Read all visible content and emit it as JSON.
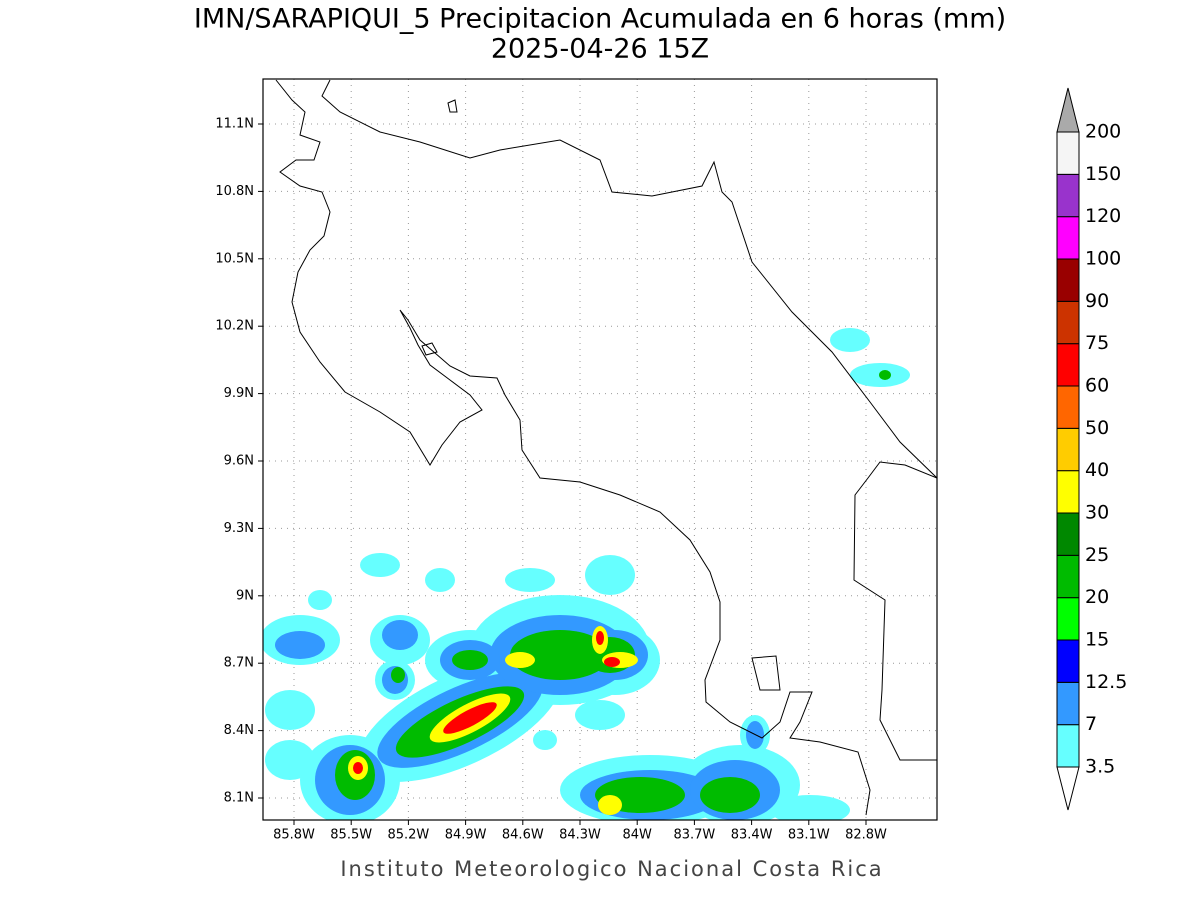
{
  "map": {
    "title": "IMN/SARAPIQUI_5 Precipitacion Acumulada en 6 horas (mm)",
    "subtitle": "2025-04-26 15Z",
    "footer": "Instituto Meteorologico Nacional Costa Rica",
    "lat_ticks": [
      {
        "value": 11.1,
        "label": "11.1N"
      },
      {
        "value": 10.8,
        "label": "10.8N"
      },
      {
        "value": 10.5,
        "label": "10.5N"
      },
      {
        "value": 10.2,
        "label": "10.2N"
      },
      {
        "value": 9.9,
        "label": "9.9N"
      },
      {
        "value": 9.6,
        "label": "9.6N"
      },
      {
        "value": 9.3,
        "label": "9.3N"
      },
      {
        "value": 9,
        "label": "9N"
      },
      {
        "value": 8.7,
        "label": "8.7N"
      },
      {
        "value": 8.4,
        "label": "8.4N"
      },
      {
        "value": 8.1,
        "label": "8.1N"
      }
    ],
    "lon_ticks": [
      {
        "value": -85.8,
        "label": "85.8W"
      },
      {
        "value": -85.5,
        "label": "85.5W"
      },
      {
        "value": -85.2,
        "label": "85.2W"
      },
      {
        "value": -84.9,
        "label": "84.9W"
      },
      {
        "value": -84.6,
        "label": "84.6W"
      },
      {
        "value": -84.3,
        "label": "84.3W"
      },
      {
        "value": -84,
        "label": "84W"
      },
      {
        "value": -83.7,
        "label": "83.7W"
      },
      {
        "value": -83.4,
        "label": "83.4W"
      },
      {
        "value": -83.1,
        "label": "83.1W"
      },
      {
        "value": -82.8,
        "label": "82.8W"
      }
    ],
    "grid": true,
    "colorbar": {
      "levels": [
        3.5,
        7,
        12.5,
        15,
        20,
        25,
        30,
        40,
        50,
        60,
        75,
        90,
        100,
        120,
        150,
        200
      ],
      "colors": [
        "#66ffff",
        "#3399ff",
        "#0000ff",
        "#00ff00",
        "#00bb00",
        "#008800",
        "#ffff00",
        "#ffcc00",
        "#ff6600",
        "#ff0000",
        "#cc3300",
        "#990000",
        "#ff00ff",
        "#9933cc",
        "#f5f5f5"
      ],
      "under_color": "#ffffff",
      "over_color": "#aaaaaa"
    }
  }
}
